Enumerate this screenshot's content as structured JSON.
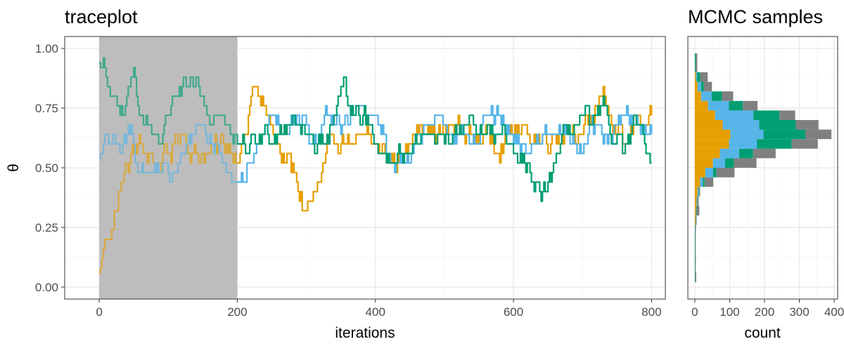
{
  "colors": {
    "chain_1": "#E69F00",
    "chain_2": "#56B4E9",
    "chain_3": "#009E73",
    "chain_4": "#808080",
    "burnin_shade": "#BEBEBE"
  },
  "chart_data": [
    {
      "type": "line",
      "title": "traceplot",
      "xlabel": "iterations",
      "ylabel": "θ",
      "xlim": [
        -50,
        820
      ],
      "ylim": [
        -0.05,
        1.05
      ],
      "xticks": [
        0,
        200,
        400,
        600,
        800
      ],
      "yticks": [
        0.0,
        0.25,
        0.5,
        0.75,
        1.0
      ],
      "ytick_labels": [
        "0.00",
        "0.25",
        "0.50",
        "0.75",
        "1.00"
      ],
      "grid": true,
      "burnin": [
        0,
        200
      ],
      "chains": [
        {
          "key": "chain_1",
          "start": 0.06,
          "anchors": [
            [
              0,
              0.06
            ],
            [
              5,
              0.14
            ],
            [
              12,
              0.22
            ],
            [
              20,
              0.26
            ],
            [
              28,
              0.38
            ],
            [
              36,
              0.46
            ],
            [
              45,
              0.54
            ],
            [
              60,
              0.6
            ],
            [
              80,
              0.52
            ],
            [
              100,
              0.55
            ],
            [
              120,
              0.66
            ],
            [
              140,
              0.54
            ],
            [
              160,
              0.56
            ],
            [
              180,
              0.6
            ],
            [
              200,
              0.56
            ],
            [
              215,
              0.66
            ],
            [
              222,
              0.86
            ],
            [
              232,
              0.78
            ],
            [
              245,
              0.7
            ],
            [
              262,
              0.58
            ],
            [
              280,
              0.48
            ],
            [
              298,
              0.32
            ],
            [
              315,
              0.4
            ],
            [
              330,
              0.54
            ],
            [
              350,
              0.64
            ],
            [
              370,
              0.6
            ],
            [
              390,
              0.62
            ],
            [
              410,
              0.56
            ],
            [
              430,
              0.52
            ],
            [
              450,
              0.58
            ],
            [
              465,
              0.72
            ],
            [
              478,
              0.66
            ],
            [
              500,
              0.64
            ],
            [
              520,
              0.68
            ],
            [
              540,
              0.62
            ],
            [
              560,
              0.64
            ],
            [
              580,
              0.6
            ],
            [
              600,
              0.66
            ],
            [
              620,
              0.64
            ],
            [
              640,
              0.62
            ],
            [
              660,
              0.64
            ],
            [
              680,
              0.66
            ],
            [
              700,
              0.64
            ],
            [
              715,
              0.7
            ],
            [
              730,
              0.84
            ],
            [
              745,
              0.66
            ],
            [
              760,
              0.58
            ],
            [
              780,
              0.7
            ],
            [
              800,
              0.72
            ]
          ]
        },
        {
          "key": "chain_2",
          "start": 0.54,
          "anchors": [
            [
              0,
              0.54
            ],
            [
              15,
              0.62
            ],
            [
              30,
              0.58
            ],
            [
              45,
              0.66
            ],
            [
              55,
              0.54
            ],
            [
              70,
              0.48
            ],
            [
              90,
              0.5
            ],
            [
              110,
              0.46
            ],
            [
              130,
              0.62
            ],
            [
              145,
              0.7
            ],
            [
              160,
              0.6
            ],
            [
              180,
              0.56
            ],
            [
              195,
              0.46
            ],
            [
              210,
              0.44
            ],
            [
              230,
              0.6
            ],
            [
              250,
              0.72
            ],
            [
              270,
              0.68
            ],
            [
              290,
              0.74
            ],
            [
              310,
              0.56
            ],
            [
              330,
              0.74
            ],
            [
              350,
              0.66
            ],
            [
              370,
              0.76
            ],
            [
              390,
              0.7
            ],
            [
              410,
              0.68
            ],
            [
              425,
              0.5
            ],
            [
              440,
              0.52
            ],
            [
              460,
              0.62
            ],
            [
              480,
              0.66
            ],
            [
              500,
              0.7
            ],
            [
              520,
              0.62
            ],
            [
              540,
              0.6
            ],
            [
              560,
              0.72
            ],
            [
              580,
              0.7
            ],
            [
              600,
              0.6
            ],
            [
              620,
              0.56
            ],
            [
              640,
              0.64
            ],
            [
              660,
              0.7
            ],
            [
              680,
              0.62
            ],
            [
              700,
              0.58
            ],
            [
              720,
              0.66
            ],
            [
              740,
              0.6
            ],
            [
              760,
              0.72
            ],
            [
              780,
              0.68
            ],
            [
              800,
              0.66
            ]
          ]
        },
        {
          "key": "chain_3",
          "start": 0.94,
          "anchors": [
            [
              0,
              0.94
            ],
            [
              8,
              0.92
            ],
            [
              15,
              0.84
            ],
            [
              25,
              0.76
            ],
            [
              35,
              0.68
            ],
            [
              45,
              0.84
            ],
            [
              50,
              0.9
            ],
            [
              60,
              0.72
            ],
            [
              75,
              0.66
            ],
            [
              90,
              0.62
            ],
            [
              110,
              0.84
            ],
            [
              125,
              0.82
            ],
            [
              140,
              0.84
            ],
            [
              160,
              0.7
            ],
            [
              175,
              0.74
            ],
            [
              190,
              0.64
            ],
            [
              205,
              0.56
            ],
            [
              220,
              0.6
            ],
            [
              240,
              0.64
            ],
            [
              260,
              0.66
            ],
            [
              280,
              0.72
            ],
            [
              300,
              0.64
            ],
            [
              320,
              0.6
            ],
            [
              340,
              0.7
            ],
            [
              355,
              0.82
            ],
            [
              365,
              0.78
            ],
            [
              380,
              0.72
            ],
            [
              395,
              0.66
            ],
            [
              410,
              0.56
            ],
            [
              430,
              0.54
            ],
            [
              450,
              0.6
            ],
            [
              470,
              0.64
            ],
            [
              490,
              0.62
            ],
            [
              510,
              0.6
            ],
            [
              530,
              0.7
            ],
            [
              550,
              0.66
            ],
            [
              570,
              0.64
            ],
            [
              590,
              0.6
            ],
            [
              610,
              0.52
            ],
            [
              625,
              0.46
            ],
            [
              640,
              0.36
            ],
            [
              655,
              0.48
            ],
            [
              670,
              0.6
            ],
            [
              685,
              0.68
            ],
            [
              700,
              0.72
            ],
            [
              715,
              0.66
            ],
            [
              730,
              0.74
            ],
            [
              745,
              0.62
            ],
            [
              760,
              0.58
            ],
            [
              775,
              0.66
            ],
            [
              790,
              0.62
            ],
            [
              800,
              0.48
            ]
          ]
        }
      ]
    },
    {
      "type": "bar",
      "title": "MCMC samples",
      "xlabel": "count",
      "orientation": "horizontal",
      "stacked": true,
      "xlim": [
        -20,
        410
      ],
      "xticks": [
        0,
        100,
        200,
        300,
        400
      ],
      "ylim": [
        -0.05,
        1.05
      ],
      "grid": true,
      "bin_centers": [
        0.04,
        0.08,
        0.12,
        0.16,
        0.2,
        0.24,
        0.28,
        0.32,
        0.36,
        0.4,
        0.44,
        0.48,
        0.52,
        0.56,
        0.6,
        0.64,
        0.68,
        0.72,
        0.76,
        0.8,
        0.84,
        0.88,
        0.92,
        0.96
      ],
      "series": [
        {
          "key": "chain_1",
          "values": [
            0,
            0,
            0,
            0,
            0,
            0,
            2,
            3,
            5,
            8,
            15,
            30,
            52,
            72,
            98,
            102,
            80,
            58,
            38,
            18,
            8,
            3,
            0,
            0
          ]
        },
        {
          "key": "chain_2",
          "values": [
            0,
            0,
            0,
            0,
            0,
            0,
            0,
            1,
            2,
            3,
            8,
            22,
            35,
            55,
            80,
            95,
            105,
            110,
            60,
            30,
            10,
            3,
            0,
            0
          ]
        },
        {
          "key": "chain_3",
          "values": [
            1,
            1,
            1,
            1,
            1,
            1,
            1,
            1,
            1,
            2,
            5,
            10,
            25,
            40,
            100,
            120,
            105,
            75,
            40,
            30,
            8,
            10,
            2,
            3
          ]
        },
        {
          "key": "chain_4",
          "values": [
            3,
            1,
            2,
            1,
            1,
            2,
            2,
            8,
            3,
            2,
            25,
            52,
            65,
            65,
            75,
            75,
            65,
            45,
            42,
            32,
            23,
            21,
            5,
            4
          ]
        }
      ]
    }
  ]
}
